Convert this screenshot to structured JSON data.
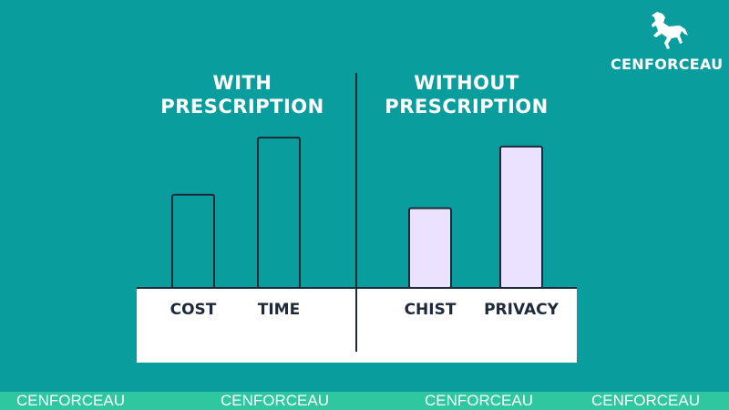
{
  "brand": {
    "name": "CENFORCEAU",
    "logo_icon": "horse-icon"
  },
  "footer": {
    "watermarks": [
      "CENFORCEAU",
      "CENFORCEAU",
      "CENFORCEAU",
      "CENFORCEAU"
    ]
  },
  "chart_data": [
    {
      "type": "bar",
      "title": "WITH PRESCRIPTION",
      "categories": [
        "COST",
        "TIME"
      ],
      "values": [
        62,
        100
      ],
      "ylim": [
        0,
        100
      ],
      "bar_fill": "transparent",
      "bar_stroke": "#1e2a3a",
      "grid": false
    },
    {
      "type": "bar",
      "title": "WITHOUT PRESCRIPTION",
      "categories": [
        "CHIST",
        "PRIVACY"
      ],
      "values": [
        53,
        94
      ],
      "ylim": [
        0,
        100
      ],
      "bar_fill": "#ebe2ff",
      "bar_stroke": "#1e2a3a",
      "grid": false
    }
  ],
  "colors": {
    "background": "#0a9d9d",
    "baseline_panel": "#ffffff",
    "footer": "#2ec7a0",
    "ink": "#1e2a3a"
  }
}
